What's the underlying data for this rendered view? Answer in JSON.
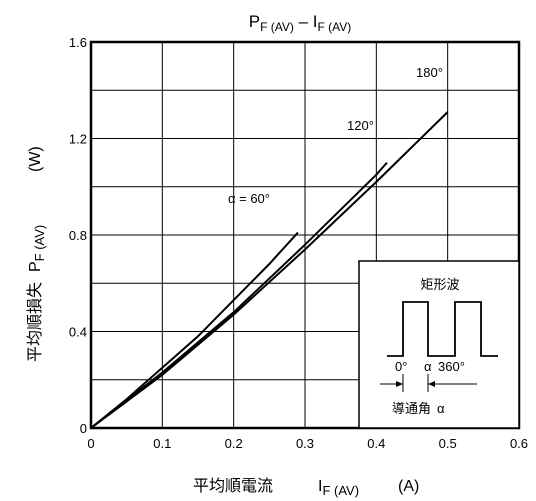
{
  "chart_data": {
    "type": "line",
    "title": {
      "main": "P",
      "main_sub": "F (AV)",
      "dash": " – ",
      "second": "I",
      "second_sub": "F (AV)"
    },
    "xlabel": {
      "jp": "平均順電流",
      "sym": "I",
      "sub": "F (AV)",
      "unit": "(A)"
    },
    "ylabel": {
      "jp": "平均順損失",
      "sym": "P",
      "sub": "F (AV)",
      "unit": "(W)"
    },
    "xlim": [
      0,
      0.6
    ],
    "ylim": [
      0,
      1.6
    ],
    "x_ticks": [
      "0",
      "0.1",
      "0.2",
      "0.3",
      "0.4",
      "0.5",
      "0.6"
    ],
    "y_ticks": [
      "0",
      "0.4",
      "0.8",
      "1.2",
      "1.6"
    ],
    "grid": true,
    "series": [
      {
        "name": "α = 60°",
        "x": [
          0,
          0.05,
          0.1,
          0.15,
          0.2,
          0.25,
          0.29
        ],
        "y": [
          0,
          0.12,
          0.25,
          0.38,
          0.53,
          0.68,
          0.81
        ]
      },
      {
        "name": "120°",
        "x": [
          0,
          0.1,
          0.2,
          0.3,
          0.4,
          0.415
        ],
        "y": [
          0,
          0.23,
          0.48,
          0.76,
          1.05,
          1.1
        ]
      },
      {
        "name": "180°",
        "x": [
          0,
          0.1,
          0.2,
          0.3,
          0.4,
          0.5
        ],
        "y": [
          0,
          0.22,
          0.47,
          0.74,
          1.02,
          1.31
        ]
      }
    ],
    "inset": {
      "title": "矩形波",
      "label_zero": "0°",
      "label_alpha": "α",
      "label_360": "360°",
      "caption": "導通角",
      "caption_sym": "α"
    }
  }
}
